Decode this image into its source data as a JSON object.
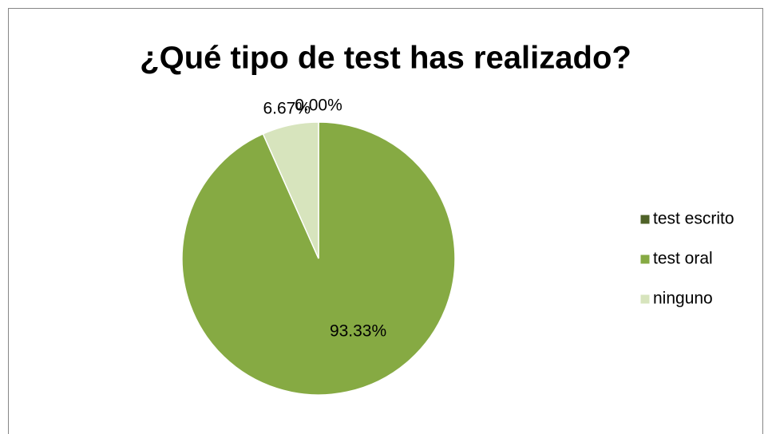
{
  "chart_data": {
    "type": "pie",
    "title": "¿Qué tipo de test has realizado?",
    "categories": [
      "test escrito",
      "test oral",
      "ninguno"
    ],
    "values": [
      0,
      93.33,
      6.67
    ],
    "value_labels": [
      "0.00%",
      "93.33%",
      "6.67%"
    ],
    "colors": [
      "#4f6228",
      "#86aa43",
      "#d7e4bd"
    ],
    "legend": "right"
  }
}
